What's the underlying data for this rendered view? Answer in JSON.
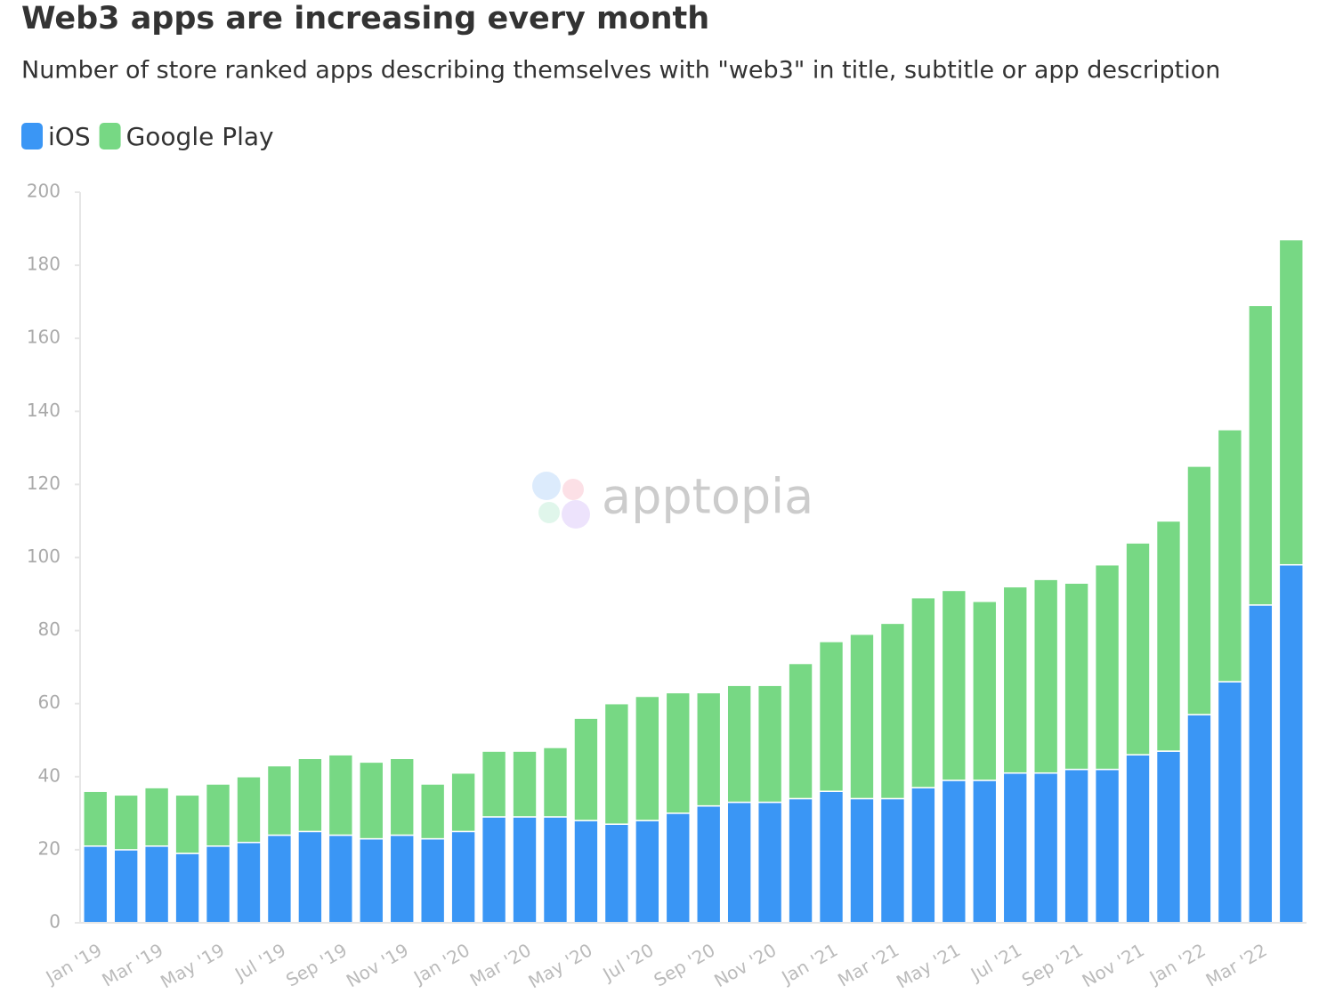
{
  "chart_data": {
    "type": "stacked-bar",
    "title": "Web3 apps are increasing every month",
    "subtitle": "Number of store ranked apps describing themselves with \"web3\" in title, subtitle or app description",
    "watermark": "apptopia",
    "categories": [
      "Jan '19",
      null,
      "Mar '19",
      null,
      "May '19",
      null,
      "Jul '19",
      null,
      "Sep '19",
      null,
      "Nov '19",
      null,
      "Jan '20",
      null,
      "Mar '20",
      null,
      "May '20",
      null,
      "Jul '20",
      null,
      "Sep '20",
      null,
      "Nov '20",
      null,
      "Jan '21",
      null,
      "Mar '21",
      null,
      "May '21",
      null,
      "Jul '21",
      null,
      "Sep '21",
      null,
      "Nov '21",
      null,
      "Jan '22",
      null,
      "Mar '22",
      null
    ],
    "series": [
      {
        "name": "iOS",
        "color": "#3a96f5",
        "values": [
          21,
          20,
          21,
          19,
          21,
          22,
          24,
          25,
          24,
          23,
          24,
          23,
          25,
          29,
          29,
          29,
          28,
          27,
          28,
          30,
          32,
          33,
          33,
          34,
          36,
          34,
          34,
          37,
          39,
          39,
          41,
          41,
          42,
          42,
          46,
          47,
          57,
          66,
          87,
          98
        ]
      },
      {
        "name": "Google Play",
        "color": "#77d884",
        "values": [
          15,
          15,
          16,
          16,
          17,
          18,
          19,
          20,
          22,
          21,
          21,
          15,
          16,
          18,
          18,
          19,
          28,
          33,
          34,
          33,
          31,
          32,
          32,
          37,
          41,
          45,
          48,
          52,
          52,
          49,
          51,
          53,
          51,
          56,
          58,
          63,
          68,
          69,
          82,
          89
        ]
      }
    ],
    "ylim": [
      0,
      200
    ],
    "yticks": [
      0,
      20,
      40,
      60,
      80,
      100,
      120,
      140,
      160,
      180,
      200
    ],
    "grid": false,
    "legend": "top-left"
  }
}
